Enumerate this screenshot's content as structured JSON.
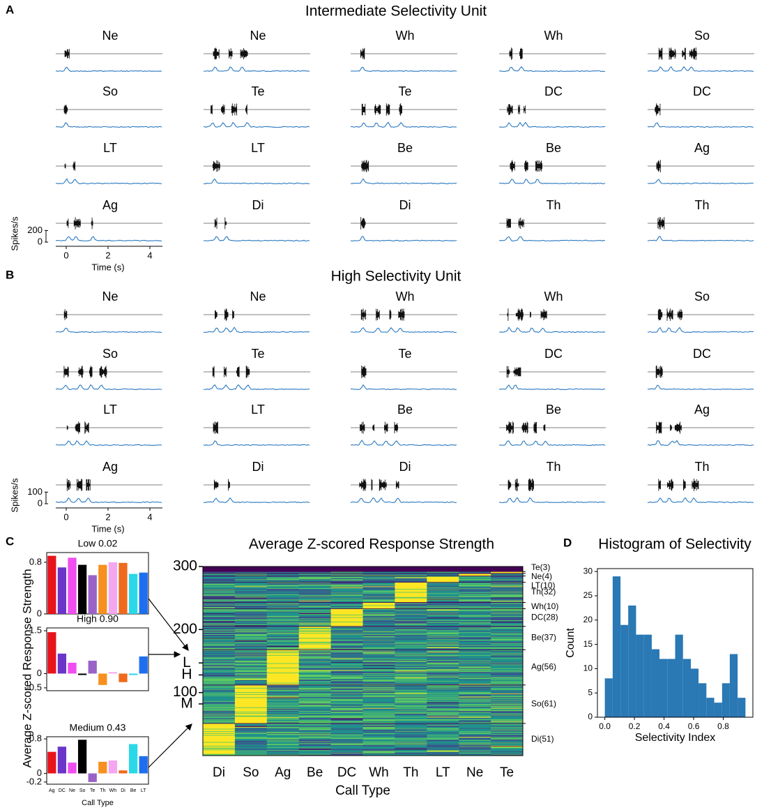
{
  "palette": {
    "Ag": "#e8141c",
    "DC": "#6a35c8",
    "Ne": "#f04ef0",
    "So": "#000000",
    "Te": "#9a62c8",
    "Th": "#f7901e",
    "Wh": "#f5a6f0",
    "Di": "#f06a1e",
    "Be": "#2ad8e8",
    "LT": "#1e6ef0"
  },
  "chart_data": [
    {
      "type": "small-multiples",
      "panel": "A",
      "title": "Intermediate Selectivity Unit",
      "calls": [
        "Ne",
        "Ne",
        "Wh",
        "Wh",
        "So",
        "So",
        "Te",
        "Te",
        "DC",
        "DC",
        "LT",
        "LT",
        "Be",
        "Be",
        "Ag",
        "Ag",
        "Di",
        "Di",
        "Th",
        "Th"
      ],
      "xlim": [
        -0.5,
        4.6
      ],
      "xticks": [
        0,
        2,
        4
      ],
      "ylim": [
        0,
        300
      ],
      "yticks": [
        0,
        200
      ],
      "xlabel": "Time (s)",
      "ylabel": "Spikes/s",
      "trace_color": "#2a78c0"
    },
    {
      "type": "small-multiples",
      "panel": "B",
      "title": "High Selectivity Unit",
      "calls": [
        "Ne",
        "Ne",
        "Wh",
        "Wh",
        "So",
        "So",
        "Te",
        "Te",
        "DC",
        "DC",
        "LT",
        "LT",
        "Be",
        "Be",
        "Ag",
        "Ag",
        "Di",
        "Di",
        "Th",
        "Th"
      ],
      "xlim": [
        -0.5,
        4.6
      ],
      "xticks": [
        0,
        2,
        4
      ],
      "ylim": [
        0,
        150
      ],
      "yticks": [
        0,
        100
      ],
      "xlabel": "Time (s)",
      "ylabel": "Spikes/s",
      "trace_color": "#2a78c0"
    },
    {
      "type": "bar",
      "panel": "C",
      "title": "Low 0.02",
      "ylabel": "Average Z-scored Response Strength",
      "categories": [
        "Ag",
        "DC",
        "Ne",
        "So",
        "Te",
        "Th",
        "Wh",
        "Di",
        "Be",
        "LT"
      ],
      "values": [
        0.9,
        0.72,
        0.87,
        0.76,
        0.6,
        0.76,
        0.8,
        0.79,
        0.62,
        0.64
      ],
      "ylim": [
        0,
        0.95
      ],
      "yticks": [
        0,
        0.8
      ]
    },
    {
      "type": "bar",
      "title": "High 0.90",
      "categories": [
        "Ag",
        "DC",
        "Ne",
        "So",
        "Te",
        "Th",
        "Wh",
        "Di",
        "Be",
        "LT"
      ],
      "values": [
        1.45,
        0.7,
        0.38,
        -0.05,
        0.45,
        -0.4,
        0.05,
        -0.3,
        -0.05,
        0.6
      ],
      "ylim": [
        -0.6,
        1.6
      ],
      "yticks": [
        -0.5,
        0,
        1.5
      ]
    },
    {
      "type": "bar",
      "title": "Medium 0.43",
      "xlabel": "Call Type",
      "categories": [
        "Ag",
        "DC",
        "Ne",
        "So",
        "Te",
        "Th",
        "Wh",
        "Di",
        "Be",
        "LT"
      ],
      "values": [
        0.5,
        0.62,
        0.25,
        0.78,
        -0.2,
        0.27,
        0.3,
        0.07,
        0.68,
        0.4
      ],
      "ylim": [
        -0.25,
        0.85
      ],
      "yticks": [
        -0.2,
        0,
        0.8
      ]
    },
    {
      "type": "heatmap",
      "title": "Average Z-scored Response Strength",
      "xlabel": "Call Type",
      "categories": [
        "Di",
        "So",
        "Ag",
        "Be",
        "DC",
        "Wh",
        "Th",
        "LT",
        "Ne",
        "Te"
      ],
      "ylim": [
        0,
        300
      ],
      "yticks": [
        100,
        200,
        300
      ],
      "markers": [
        {
          "value": 147,
          "label": "L"
        },
        {
          "value": 128,
          "label": "H"
        },
        {
          "value": 82,
          "label": "M"
        }
      ],
      "row_groups": [
        {
          "label": "Di(51)",
          "rows": 51
        },
        {
          "label": "So(61)",
          "rows": 61
        },
        {
          "label": "Ag(56)",
          "rows": 56
        },
        {
          "label": "Be(37)",
          "rows": 37
        },
        {
          "label": "DC(28)",
          "rows": 28
        },
        {
          "label": "Wh(10)",
          "rows": 10
        },
        {
          "label": "Th(32)",
          "rows": 32
        },
        {
          "label": "LT(10)",
          "rows": 10
        },
        {
          "label": "Ne(4)",
          "rows": 4
        },
        {
          "label": "Te(3)",
          "rows": 3
        }
      ],
      "colormap": [
        "#440154",
        "#3b528b",
        "#21918c",
        "#5ec962",
        "#fde725"
      ]
    },
    {
      "type": "histogram",
      "panel": "D",
      "title": "Histogram of Selectivity",
      "xlabel": "Selectivity Index",
      "ylabel": "Count",
      "bins": [
        0,
        0.053,
        0.106,
        0.158,
        0.211,
        0.264,
        0.317,
        0.369,
        0.422,
        0.475,
        0.528,
        0.581,
        0.633,
        0.686,
        0.739,
        0.792,
        0.844,
        0.897,
        0.95
      ],
      "values": [
        8,
        29,
        19,
        23,
        17,
        17,
        14,
        12,
        12,
        17,
        12,
        10,
        7,
        4,
        3,
        7,
        13,
        4
      ],
      "color": "#2a78b4",
      "xlim": [
        -0.05,
        1.0
      ],
      "xticks": [
        {
          "value": 0,
          "label": "0.0"
        },
        0.2,
        0.4,
        0.6,
        0.8
      ],
      "ylim": [
        0,
        30.6
      ],
      "yticks": [
        0,
        5,
        10,
        15,
        20,
        25,
        30
      ]
    }
  ]
}
